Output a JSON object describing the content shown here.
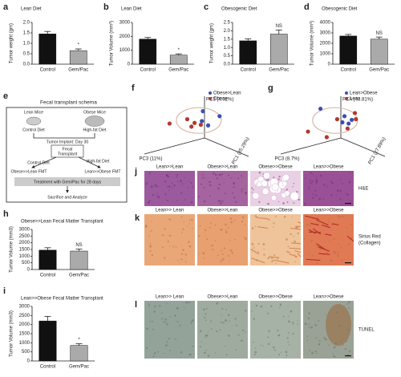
{
  "chart_data": [
    {
      "type": "bar",
      "panel": "a",
      "title": "Lean Diet",
      "ylabel": "Tumor weight (gm)",
      "categories": [
        "Control",
        "Gem/Pac"
      ],
      "values": [
        1.45,
        0.65
      ],
      "errors": [
        0.12,
        0.08
      ],
      "colors": [
        "#111111",
        "#aaaaaa"
      ],
      "ylim": [
        0,
        2
      ],
      "yticks": [
        {
          "value": 0,
          "label": "0.0"
        },
        0.5,
        {
          "value": 1,
          "label": "1.0"
        },
        1.5,
        {
          "value": 2,
          "label": "2.0"
        }
      ],
      "annotation": "*"
    },
    {
      "type": "bar",
      "panel": "b",
      "title": "Lean Diet",
      "ylabel": "Tumor Volume (mm³)",
      "categories": [
        "Control",
        "Gem/Pac"
      ],
      "values": [
        1800,
        650
      ],
      "errors": [
        120,
        90
      ],
      "colors": [
        "#111111",
        "#aaaaaa"
      ],
      "ylim": [
        0,
        3000
      ],
      "yticks": [
        0,
        1000,
        2000,
        3000
      ],
      "annotation": "*"
    },
    {
      "type": "bar",
      "panel": "c",
      "title": "Obesogenic Diet",
      "ylabel": "Tumor weight (gm)",
      "categories": [
        "Control",
        "Gem/Pac"
      ],
      "values": [
        1.4,
        1.8
      ],
      "errors": [
        0.12,
        0.25
      ],
      "colors": [
        "#111111",
        "#aaaaaa"
      ],
      "ylim": [
        0,
        2.5
      ],
      "yticks": [
        {
          "value": 0,
          "label": "0.0"
        },
        0.5,
        {
          "value": 1,
          "label": "1.0"
        },
        1.5,
        {
          "value": 2,
          "label": "2.0"
        },
        2.5
      ],
      "annotation": "NS"
    },
    {
      "type": "bar",
      "panel": "d",
      "title": "Obesogenic Diet",
      "ylabel": "Tumor Volume (mm³)",
      "categories": [
        "Control",
        "Gem/Pac"
      ],
      "values": [
        2700,
        2400
      ],
      "errors": [
        150,
        200
      ],
      "colors": [
        "#111111",
        "#aaaaaa"
      ],
      "ylim": [
        0,
        4000
      ],
      "yticks": [
        0,
        1000,
        2000,
        3000,
        4000
      ],
      "annotation": "NS"
    },
    {
      "type": "bar",
      "panel": "h",
      "title": "Obese>>Lean Fecal Matter Transplant",
      "ylabel": "Tumor Volume (mm3)",
      "categories": [
        "Control",
        "Gem/Pac"
      ],
      "values": [
        1450,
        1380
      ],
      "errors": [
        180,
        150
      ],
      "colors": [
        "#111111",
        "#aaaaaa"
      ],
      "ylim": [
        0,
        3000
      ],
      "yticks": [
        0,
        500,
        1000,
        1500,
        2000,
        2500,
        3000
      ],
      "annotation": "NS"
    },
    {
      "type": "bar",
      "panel": "i",
      "title": "Lean>>Obese Fecal Matter Transplant",
      "ylabel": "Tumor Volume (mm3)",
      "categories": [
        "Control",
        "Gem/Pac"
      ],
      "values": [
        2200,
        850
      ],
      "errors": [
        250,
        100
      ],
      "colors": [
        "#111111",
        "#aaaaaa"
      ],
      "ylim": [
        0,
        3000
      ],
      "yticks": [
        0,
        500,
        1000,
        1500,
        2000,
        2500,
        3000
      ],
      "annotation": "*"
    },
    {
      "type": "scatter",
      "panel": "f",
      "axis_labels": [
        "PC3 (4.02%)",
        "PC3 (11%)",
        "PC1 (85.29%)"
      ],
      "xlim": [
        0,
        10
      ],
      "ylim": [
        0,
        10
      ],
      "series": [
        {
          "name": "Obese>Lean",
          "color": "#3a4fb0",
          "x": [
            5.0,
            6.6,
            4.9,
            5.5
          ],
          "y": [
            6.8,
            6.0,
            5.2,
            4.5
          ]
        },
        {
          "name": "Obese",
          "color": "#b03a2e",
          "x": [
            3.5,
            4.2,
            3.9,
            4.8,
            1.8
          ],
          "y": [
            5.5,
            4.9,
            4.3,
            4.6,
            4.8
          ]
        }
      ]
    },
    {
      "type": "scatter",
      "panel": "g",
      "axis_labels": [
        "PCA (48.81%)",
        "PC3 (8.7%)",
        "PC1 (27.89%)"
      ],
      "xlim": [
        0,
        10
      ],
      "ylim": [
        0,
        10
      ],
      "series": [
        {
          "name": "Lean>Obese",
          "color": "#3a4fb0",
          "x": [
            3.2,
            5.5,
            6.2,
            5.9,
            5.3
          ],
          "y": [
            7.2,
            6.0,
            5.4,
            4.8,
            5.0
          ]
        },
        {
          "name": "Lean",
          "color": "#b03a2e",
          "x": [
            6.5,
            4.8,
            6.6,
            5.8,
            2.0,
            3.8
          ],
          "y": [
            6.5,
            5.5,
            5.5,
            4.0,
            3.5,
            2.6
          ]
        }
      ]
    }
  ],
  "schema": {
    "panel": "e",
    "title": "Fecal transplant schema",
    "lean_mice": "Lean Mice",
    "obese_mice": "Obese Mice",
    "lean_diet": "Control Diet",
    "obese_diet": "High-fat Diet",
    "implant": "Tumor Implant: Day 30",
    "transplant": [
      "Fecal",
      "Transplant"
    ],
    "diet_left": "Control Diet",
    "diet_right": "High-fat Diet",
    "fmt_left": "Obese>>Lean FMT",
    "fmt_right": "Lean>>Obese FMT",
    "treatment": "Treatment with Gem/Pac for 28 days",
    "end": "Sacrifice and Analyze"
  },
  "histology": [
    {
      "panel": "j",
      "headers": [
        "Lean>>Lean",
        "Obese>>Lean",
        "Obese>>Obese",
        "Lean>>Obese"
      ],
      "label": [
        "H&E"
      ]
    },
    {
      "panel": "k",
      "headers": [
        "Lean>> Lean",
        "Obese>>Lean",
        "Obese>>Obese",
        "Lean>>Obese"
      ],
      "label": [
        "Sirius Red",
        "(Collagen)"
      ]
    },
    {
      "panel": "l",
      "headers": [
        "Lean>> Lean",
        "Obese>>Lean",
        "Obese>>Obese",
        "Lean>>Obese"
      ],
      "label": [
        "TUNEL"
      ]
    }
  ]
}
